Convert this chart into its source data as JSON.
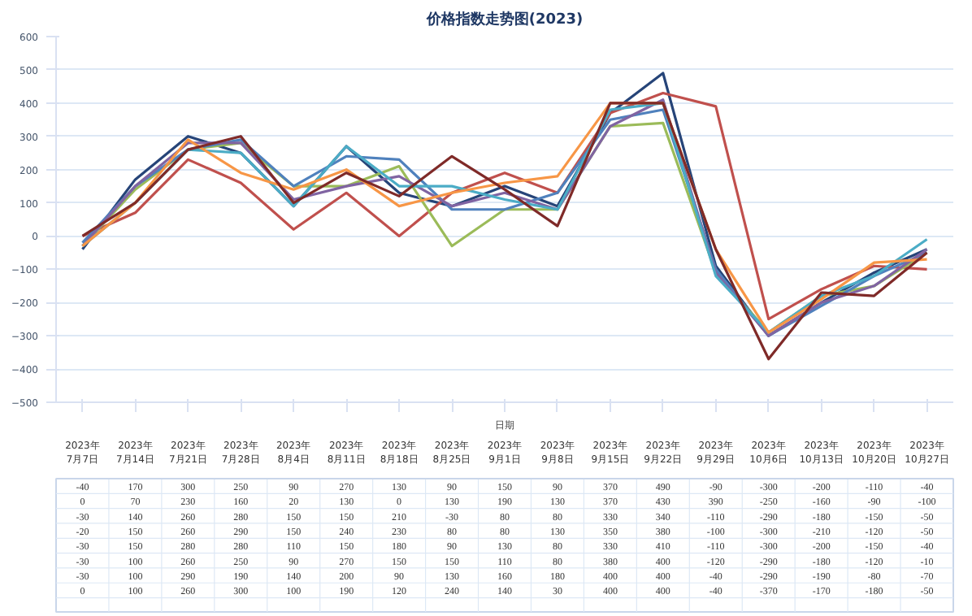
{
  "chart_data": {
    "type": "line",
    "title": "价格指数走势图(2023)",
    "xlabel": "日期",
    "categories": [
      "2023年7月7日",
      "2023年7月14日",
      "2023年7月21日",
      "2023年7月28日",
      "2023年8月4日",
      "2023年8月11日",
      "2023年8月18日",
      "2023年8月25日",
      "2023年9月1日",
      "2023年9月8日",
      "2023年9月15日",
      "2023年9月22日",
      "2023年9月29日",
      "2023年10月6日",
      "2023年10月13日",
      "2023年10月20日",
      "2023年10月27日"
    ],
    "series": [
      {
        "color": "#264478",
        "values": [
          -40,
          170,
          300,
          250,
          90,
          270,
          130,
          90,
          150,
          90,
          370,
          490,
          -90,
          -300,
          -200,
          -110,
          -40
        ]
      },
      {
        "color": "#c0504d",
        "values": [
          0,
          70,
          230,
          160,
          20,
          130,
          0,
          130,
          190,
          130,
          370,
          430,
          390,
          -250,
          -160,
          -90,
          -100
        ]
      },
      {
        "color": "#9bbb59",
        "values": [
          -30,
          140,
          260,
          280,
          150,
          150,
          210,
          -30,
          80,
          80,
          330,
          340,
          -110,
          -290,
          -180,
          -150,
          -50
        ]
      },
      {
        "color": "#4f81bd",
        "values": [
          -20,
          150,
          260,
          290,
          150,
          240,
          230,
          80,
          80,
          130,
          350,
          380,
          -100,
          -300,
          -210,
          -120,
          -50
        ]
      },
      {
        "color": "#8064a2",
        "values": [
          -30,
          150,
          280,
          280,
          110,
          150,
          180,
          90,
          130,
          80,
          330,
          410,
          -110,
          -300,
          -200,
          -150,
          -40
        ]
      },
      {
        "color": "#4bacc6",
        "values": [
          -30,
          100,
          260,
          250,
          90,
          270,
          150,
          150,
          110,
          80,
          380,
          400,
          -120,
          -290,
          -180,
          -120,
          -10
        ]
      },
      {
        "color": "#f79646",
        "values": [
          -30,
          100,
          290,
          190,
          140,
          200,
          90,
          130,
          160,
          180,
          400,
          400,
          -40,
          -290,
          -190,
          -80,
          -70
        ]
      },
      {
        "color": "#7f2a28",
        "values": [
          0,
          100,
          260,
          300,
          100,
          190,
          120,
          240,
          140,
          30,
          400,
          400,
          -40,
          -370,
          -170,
          -180,
          -50
        ]
      }
    ],
    "ylim": [
      -500,
      600
    ],
    "yticks": [
      -500,
      -400,
      -300,
      -200,
      -100,
      0,
      100,
      200,
      300,
      400,
      500,
      600
    ],
    "grid": "y",
    "data_labels": true,
    "line_style": "solid",
    "marker": "none"
  }
}
